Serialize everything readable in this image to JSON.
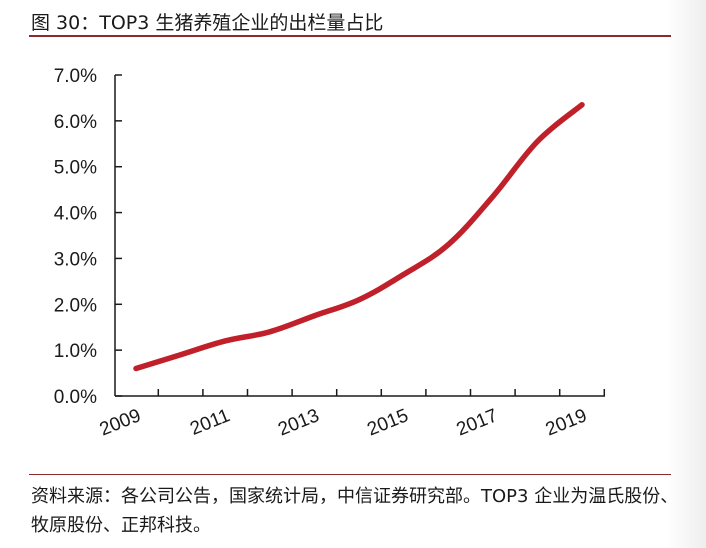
{
  "figure_title": "图 30：TOP3 生猪养殖企业的出栏量占比",
  "source_note": "资料来源：各公司公告，国家统计局，中信证券研究部。TOP3 企业为温氏股份、牧原股份、正邦科技。",
  "colors": {
    "line": "#c0202a",
    "rule": "#8a2a2a",
    "axis": "#1a1a1a"
  },
  "chart_data": {
    "type": "line",
    "title": "",
    "xlabel": "",
    "ylabel": "",
    "x": [
      2009,
      2010,
      2011,
      2012,
      2013,
      2014,
      2015,
      2016,
      2017,
      2018,
      2019
    ],
    "x_tick_labels": [
      "2009",
      "2011",
      "2013",
      "2015",
      "2017",
      "2019"
    ],
    "y_tick_labels": [
      "0.0%",
      "1.0%",
      "2.0%",
      "3.0%",
      "4.0%",
      "5.0%",
      "6.0%",
      "7.0%"
    ],
    "ylim": [
      0,
      7
    ],
    "y_unit": "%",
    "grid": false,
    "legend": "none",
    "series": [
      {
        "values": [
          0.6,
          0.9,
          1.2,
          1.4,
          1.75,
          2.1,
          2.65,
          3.3,
          4.35,
          5.55,
          6.35
        ]
      }
    ]
  }
}
